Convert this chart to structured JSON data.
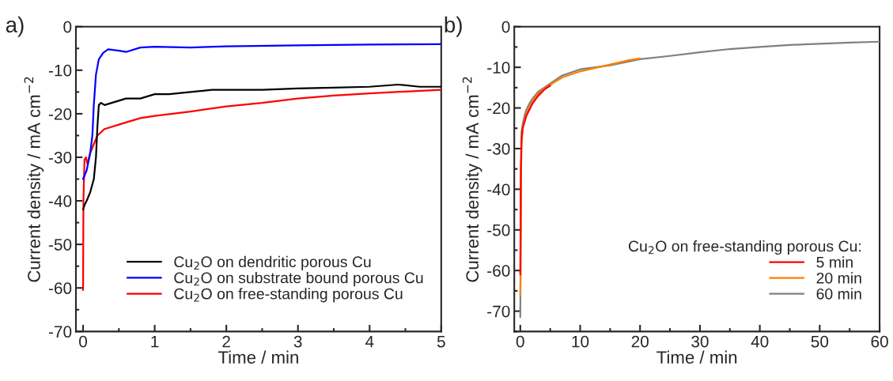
{
  "chart_data": [
    {
      "type": "line",
      "title": "a)",
      "xlabel": "Time / min",
      "ylabel": "Current density / mA cm$^{−2}$",
      "xlim": [
        -0.1,
        5
      ],
      "ylim": [
        -70,
        0
      ],
      "xticks": [
        0,
        {
          "value": 0.5,
          "label": null
        },
        1,
        {
          "value": 1.5,
          "label": null
        },
        2,
        {
          "value": 2.5,
          "label": null
        },
        3,
        {
          "value": 3.5,
          "label": null
        },
        4,
        {
          "value": 4.5,
          "label": null
        },
        5
      ],
      "yticks": [
        -70,
        {
          "value": -65,
          "label": null
        },
        -60,
        {
          "value": -55,
          "label": null
        },
        -50,
        {
          "value": -45,
          "label": null
        },
        -40,
        {
          "value": -35,
          "label": null
        },
        -30,
        {
          "value": -25,
          "label": null
        },
        -20,
        {
          "value": -15,
          "label": null
        },
        -10,
        {
          "value": -5,
          "label": null
        },
        0
      ],
      "grid": false,
      "legend": "bottom right",
      "line_style": "solid",
      "marker": "none",
      "series": [
        {
          "name": "Cu$_{2}$O on dendritic porous Cu",
          "color": "#000000",
          "x": [
            0,
            0.02,
            0.05,
            0.1,
            0.15,
            0.18,
            0.2,
            0.22,
            0.25,
            0.3,
            0.4,
            0.5,
            0.6,
            0.8,
            1,
            1.2,
            1.5,
            1.8,
            2,
            2.5,
            3,
            3.5,
            4,
            4.4,
            4.7,
            5
          ],
          "values": [
            -42,
            -41,
            -40,
            -38,
            -35,
            -30,
            -23,
            -18,
            -17.5,
            -18,
            -17.5,
            -17,
            -16.5,
            -16.5,
            -15.5,
            -15.5,
            -15,
            -14.5,
            -14.5,
            -14.5,
            -14.2,
            -14,
            -13.8,
            -13.3,
            -13.8,
            -13.8
          ]
        },
        {
          "name": "Cu$_{2}$O on substrate bound porous Cu",
          "color": "#0000ff",
          "x": [
            0,
            0.05,
            0.1,
            0.13,
            0.15,
            0.18,
            0.22,
            0.28,
            0.35,
            0.5,
            0.6,
            0.8,
            1,
            1.5,
            2,
            3,
            4,
            5
          ],
          "values": [
            -35,
            -33,
            -29,
            -25,
            -18,
            -11,
            -7.5,
            -6,
            -5.2,
            -5.5,
            -5.8,
            -4.8,
            -4.6,
            -4.8,
            -4.5,
            -4.3,
            -4.1,
            -4.0
          ]
        },
        {
          "name": "Cu$_{2}$O on free-standing porous Cu",
          "color": "#ff0000",
          "x": [
            0,
            0.005,
            0.02,
            0.04,
            0.06,
            0.1,
            0.15,
            0.2,
            0.3,
            0.5,
            0.8,
            1,
            1.5,
            2,
            2.5,
            3,
            3.5,
            4,
            4.5,
            5
          ],
          "values": [
            -60.5,
            -40,
            -30.5,
            -30,
            -31.5,
            -29,
            -27,
            -25,
            -23.5,
            -22.5,
            -21,
            -20.5,
            -19.5,
            -18.3,
            -17.5,
            -16.5,
            -15.8,
            -15.3,
            -14.9,
            -14.5
          ]
        }
      ]
    },
    {
      "type": "line",
      "title": "b)",
      "xlabel": "Time / min",
      "ylabel": "Current density / mA cm$^{−2}$",
      "legend_title": "Cu$_{2}$O on free-standing porous Cu:",
      "xlim": [
        -1,
        60
      ],
      "ylim": [
        -75,
        0
      ],
      "xticks": [
        0,
        {
          "value": 5,
          "label": null
        },
        10,
        {
          "value": 15,
          "label": null
        },
        20,
        {
          "value": 25,
          "label": null
        },
        30,
        {
          "value": 35,
          "label": null
        },
        40,
        {
          "value": 45,
          "label": null
        },
        50,
        {
          "value": 55,
          "label": null
        },
        60
      ],
      "yticks": [
        {
          "value": -75,
          "label": null
        },
        -70,
        {
          "value": -65,
          "label": null
        },
        -60,
        {
          "value": -55,
          "label": null
        },
        -50,
        {
          "value": -45,
          "label": null
        },
        -40,
        {
          "value": -35,
          "label": null
        },
        -30,
        {
          "value": -25,
          "label": null
        },
        -20,
        {
          "value": -15,
          "label": null
        },
        -10,
        {
          "value": -5,
          "label": null
        },
        0
      ],
      "grid": false,
      "legend": "bottom right",
      "line_style": "solid",
      "marker": "none",
      "series": [
        {
          "name": "5 min",
          "color": "#ff0000",
          "x": [
            0,
            0.05,
            0.1,
            0.2,
            0.4,
            0.7,
            1,
            1.5,
            2,
            3,
            4,
            5
          ],
          "values": [
            -61,
            -50,
            -35,
            -28,
            -25,
            -23.5,
            -22,
            -20.5,
            -19,
            -17,
            -15.5,
            -14.5
          ]
        },
        {
          "name": "20 min",
          "color": "#ff8000",
          "x": [
            0,
            0.05,
            0.1,
            0.2,
            0.4,
            0.7,
            1,
            1.5,
            2,
            3,
            4,
            5,
            7,
            10,
            13,
            15,
            18,
            20
          ],
          "values": [
            -66,
            -60,
            -40,
            -29,
            -25,
            -23,
            -21.5,
            -20,
            -18.5,
            -16.5,
            -15.3,
            -14.3,
            -12.5,
            -11,
            -10,
            -9.3,
            -8.3,
            -7.8
          ]
        },
        {
          "name": "60 min",
          "color": "#808080",
          "x": [
            0,
            0.05,
            0.1,
            0.2,
            0.4,
            0.7,
            1,
            1.5,
            2,
            3,
            4,
            5,
            7,
            10,
            15,
            20,
            25,
            30,
            35,
            40,
            45,
            50,
            55,
            60
          ],
          "values": [
            -71.5,
            -60,
            -40,
            -26,
            -24,
            -22,
            -20.5,
            -19,
            -17.8,
            -16,
            -15,
            -14,
            -12,
            -10.5,
            -9.5,
            -8,
            -7.2,
            -6.3,
            -5.5,
            -5,
            -4.5,
            -4.2,
            -3.9,
            -3.7
          ]
        }
      ]
    }
  ]
}
